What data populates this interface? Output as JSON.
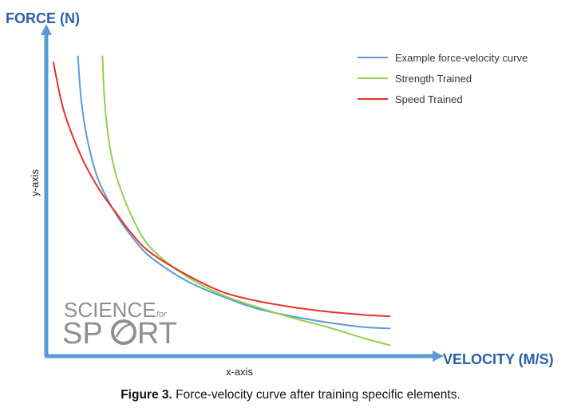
{
  "chart_data": {
    "type": "line",
    "y_title": "FORCE (N)",
    "x_title": "VELOCITY (M/S)",
    "ylabel": "y-axis",
    "xlabel": "x-axis",
    "xlim": [
      0,
      10
    ],
    "ylim": [
      0,
      10
    ],
    "grid": false,
    "legend_position": "top-right",
    "series": [
      {
        "name": "Example force-velocity curve",
        "color": "#5b9bd5",
        "x": [
          0.9,
          1.0,
          1.2,
          1.5,
          2.0,
          2.5,
          3.0,
          4.0,
          5.0,
          6.0,
          7.0,
          8.0,
          9.0,
          9.8
        ],
        "y": [
          9.8,
          8.3,
          6.9,
          5.7,
          4.6,
          3.8,
          3.2,
          2.45,
          1.95,
          1.55,
          1.3,
          1.1,
          0.95,
          0.9
        ]
      },
      {
        "name": "Strength Trained",
        "color": "#92d050",
        "x": [
          1.6,
          1.65,
          1.75,
          1.9,
          2.1,
          2.5,
          3.0,
          4.0,
          5.0,
          6.0,
          7.0,
          8.0,
          9.0,
          9.8
        ],
        "y": [
          9.8,
          8.5,
          7.3,
          6.3,
          5.5,
          4.4,
          3.5,
          2.6,
          2.0,
          1.6,
          1.25,
          0.95,
          0.6,
          0.35
        ]
      },
      {
        "name": "Speed Trained",
        "color": "#e8302a",
        "x": [
          0.2,
          0.5,
          1.0,
          1.5,
          2.0,
          2.5,
          3.0,
          4.0,
          5.0,
          6.0,
          7.0,
          8.0,
          9.0,
          9.8
        ],
        "y": [
          9.6,
          8.0,
          6.5,
          5.45,
          4.65,
          3.9,
          3.35,
          2.65,
          2.1,
          1.8,
          1.6,
          1.45,
          1.35,
          1.3
        ]
      }
    ]
  },
  "watermark": {
    "line1": "SCIENCE",
    "small": "for",
    "line2a": "SP",
    "line2b": "RT",
    "color": "#8f8f8f"
  },
  "caption": {
    "label": "Figure 3.",
    "text": " Force-velocity curve after training specific elements."
  },
  "colors": {
    "axis": "#5b9bd5",
    "title": "#2a5fa8"
  }
}
